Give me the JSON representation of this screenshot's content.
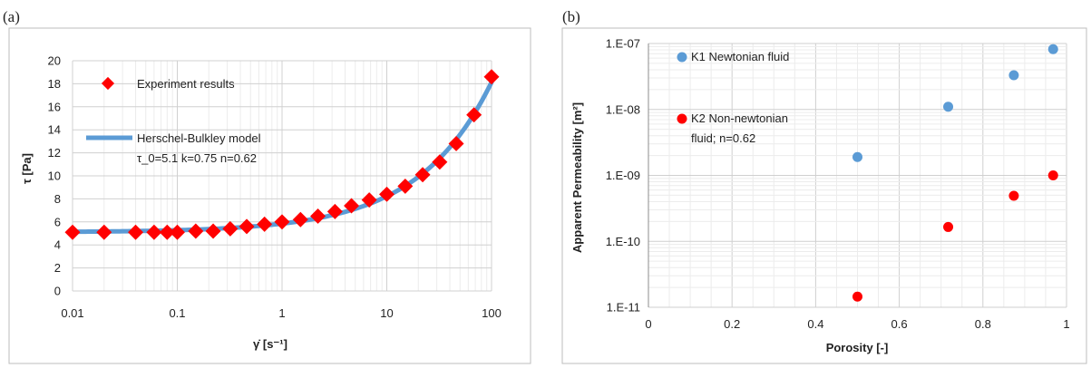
{
  "chart_data": [
    {
      "panel_label": "(a)",
      "type": "scatter",
      "x_scale": "log",
      "xlim": [
        0.01,
        100
      ],
      "ylim": [
        0,
        20
      ],
      "grid": true,
      "legend_position": "top-left",
      "ylabel": "τ [Pa]",
      "xlabel": "γ̇ [s⁻¹]",
      "x_ticks": [
        "0.01",
        "0.1",
        "1",
        "10",
        "100"
      ],
      "y_ticks": [
        "0",
        "2",
        "4",
        "6",
        "8",
        "10",
        "12",
        "14",
        "16",
        "18",
        "20"
      ],
      "series": [
        {
          "name": "Experiment results",
          "kind": "scatter",
          "marker": "diamond",
          "color": "#ff0000",
          "x": [
            0.01,
            0.02,
            0.04,
            0.06,
            0.08,
            0.1,
            0.15,
            0.22,
            0.32,
            0.46,
            0.68,
            1.0,
            1.5,
            2.2,
            3.2,
            4.6,
            6.8,
            10,
            15,
            22,
            32,
            46,
            68,
            100
          ],
          "y": [
            5.1,
            5.1,
            5.1,
            5.1,
            5.1,
            5.1,
            5.2,
            5.2,
            5.4,
            5.6,
            5.8,
            6.0,
            6.2,
            6.5,
            6.9,
            7.4,
            7.9,
            8.4,
            9.1,
            10.1,
            11.2,
            12.8,
            15.3,
            18.6
          ]
        },
        {
          "name": "Herschel-Bulkley model",
          "subtitle": "τ_0=5.1  k=0.75  n=0.62",
          "kind": "line",
          "color": "#5b9bd5",
          "tau0": 5.1,
          "k": 0.75,
          "n": 0.62
        }
      ]
    },
    {
      "panel_label": "(b)",
      "type": "scatter",
      "y_scale": "log",
      "xlim": [
        0,
        1
      ],
      "ylim": [
        1e-11,
        1e-07
      ],
      "grid": true,
      "legend_position": "top-left",
      "xlabel": "Porosity [-]",
      "ylabel": "Apparent Permeability [m²]",
      "x_ticks": [
        "0",
        "0.2",
        "0.4",
        "0.6",
        "0.8",
        "1"
      ],
      "y_ticks": [
        "1.E-11",
        "1.E-10",
        "1.E-09",
        "1.E-08",
        "1.E-07"
      ],
      "series": [
        {
          "name_lines": [
            "K1 Newtonian fluid"
          ],
          "color": "#5b9bd5",
          "x": [
            0.5,
            0.717,
            0.874,
            0.968
          ],
          "y": [
            1.9e-09,
            1.1e-08,
            3.3e-08,
            8.2e-08
          ]
        },
        {
          "name_lines": [
            "K2 Non-newtonian",
            "fluid; n=0.62"
          ],
          "color": "#ff0000",
          "x": [
            0.5,
            0.717,
            0.874,
            0.968
          ],
          "y": [
            1.45e-11,
            1.65e-10,
            4.9e-10,
            1e-09
          ]
        }
      ]
    }
  ]
}
